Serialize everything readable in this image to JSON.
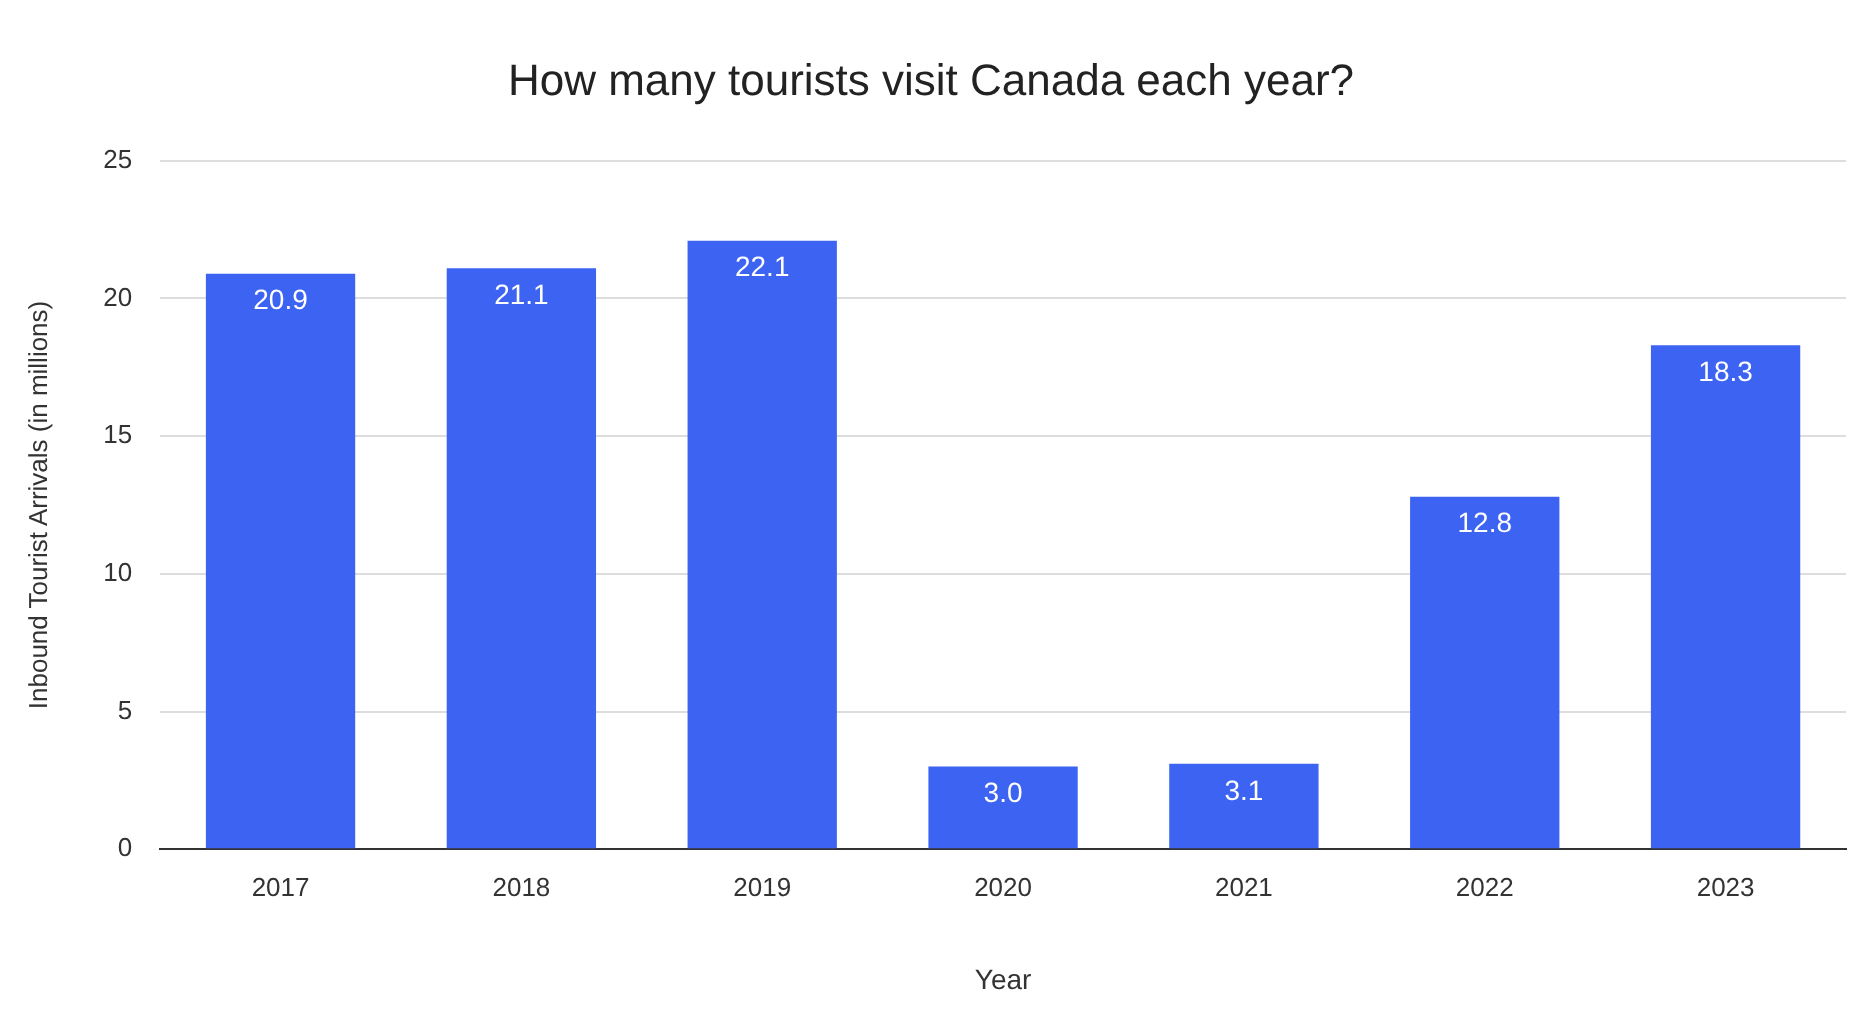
{
  "chart_data": {
    "type": "bar",
    "title": "How many tourists visit Canada each year?",
    "xlabel": "Year",
    "ylabel": "Inbound Tourist Arrivals (in millions)",
    "categories": [
      "2017",
      "2018",
      "2019",
      "2020",
      "2021",
      "2022",
      "2023"
    ],
    "values": [
      20.9,
      21.1,
      22.1,
      3.0,
      3.1,
      12.8,
      18.3
    ],
    "value_labels": [
      "20.9",
      "21.1",
      "22.1",
      "3.0",
      "3.1",
      "12.8",
      "18.3"
    ],
    "color": "#3d63f2",
    "ylim": [
      0,
      25
    ],
    "yticks": [
      0,
      5,
      10,
      15,
      20,
      25
    ],
    "grid": "y",
    "legend": false
  }
}
